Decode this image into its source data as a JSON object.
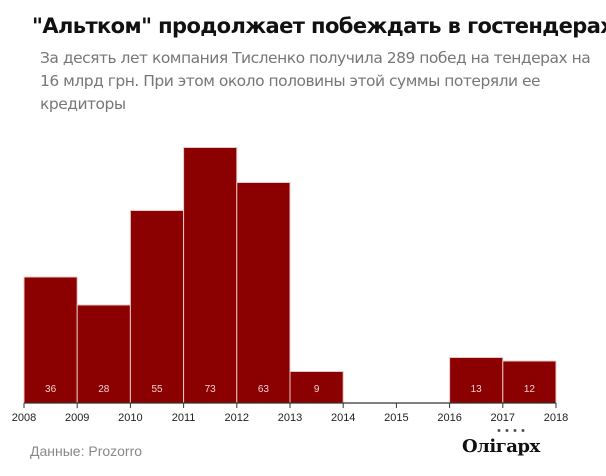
{
  "title": "\"Альтком\" продолжает побеждать в гостендерах",
  "subtitle": "За десять лет компания Тисленко получила 289 побед на тендерах на 16 млрд грн. При этом  около половины этой суммы потеряли ее кредиторы",
  "source": "Данные: Prozorro",
  "logo": "Олігарх",
  "colors": {
    "bar": "#8b0000",
    "label": "#f0d0d0"
  },
  "chart_data": {
    "type": "bar",
    "x_ticks": [
      "2008",
      "2009",
      "2010",
      "2011",
      "2012",
      "2013",
      "2014",
      "2015",
      "2016",
      "2017",
      "2018"
    ],
    "categories": [
      "2008",
      "2009",
      "2010",
      "2011",
      "2012",
      "2013",
      "2014",
      "2015",
      "2016",
      "2017"
    ],
    "values": [
      36,
      28,
      55,
      73,
      63,
      9,
      0,
      0,
      13,
      12
    ],
    "data_labels": [
      "36",
      "28",
      "55",
      "73",
      "63",
      "9",
      "",
      "",
      "13",
      "12"
    ],
    "xlabel": "",
    "ylabel": "",
    "grid": false,
    "legend": "none"
  }
}
